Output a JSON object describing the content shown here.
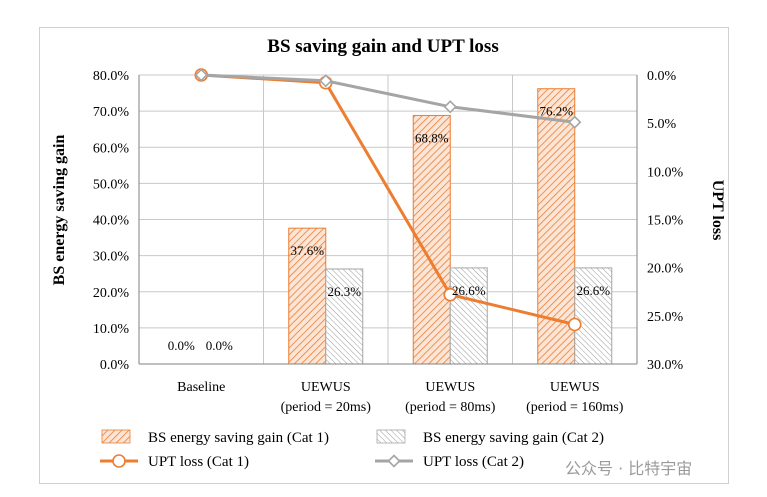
{
  "chart_data": {
    "type": "bar+line",
    "title": "BS saving gain and UPT loss",
    "ylabel": "BS energy saving gain",
    "y2label": "UPT loss",
    "ylim": [
      0,
      80
    ],
    "y2lim": [
      0,
      30
    ],
    "y2_inverted": true,
    "y_ticks": [
      "0.0%",
      "10.0%",
      "20.0%",
      "30.0%",
      "40.0%",
      "50.0%",
      "60.0%",
      "70.0%",
      "80.0%"
    ],
    "y2_ticks": [
      "0.0%",
      "5.0%",
      "10.0%",
      "15.0%",
      "20.0%",
      "25.0%",
      "30.0%"
    ],
    "categories": [
      {
        "line1": "Baseline",
        "line2": ""
      },
      {
        "line1": "UEWUS",
        "line2": "(period = 20ms)"
      },
      {
        "line1": "UEWUS",
        "line2": "(period = 80ms)"
      },
      {
        "line1": "UEWUS",
        "line2": "(period = 160ms)"
      }
    ],
    "bar_series": [
      {
        "name": "BS energy saving gain (Cat 1)",
        "color": "#ED7D31",
        "values": [
          0.0,
          37.6,
          68.8,
          76.2
        ],
        "labels": [
          "0.0%",
          "37.6%",
          "68.8%",
          "76.2%"
        ]
      },
      {
        "name": "BS energy saving gain (Cat 2)",
        "color": "#A5A5A5",
        "values": [
          0.0,
          26.3,
          26.6,
          26.6
        ],
        "labels": [
          "0.0%",
          "26.3%",
          "26.6%",
          "26.6%"
        ]
      }
    ],
    "line_series": [
      {
        "name": "UPT loss (Cat 1)",
        "color": "#ED7D31",
        "marker": "circle",
        "values": [
          0.0,
          0.8,
          22.8,
          25.9
        ]
      },
      {
        "name": "UPT loss (Cat 2)",
        "color": "#A5A5A5",
        "marker": "diamond",
        "values": [
          0.0,
          0.6,
          3.3,
          4.9
        ]
      }
    ]
  },
  "watermark": "公众号 · 比特宇宙"
}
